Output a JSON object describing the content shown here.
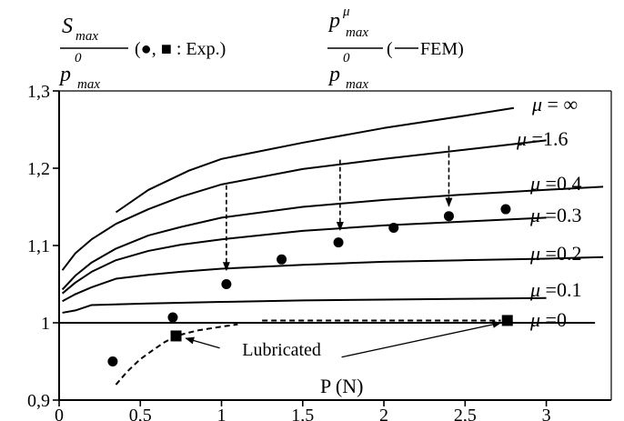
{
  "chart_data": {
    "type": "line",
    "title": "",
    "xlabel": "P (N)",
    "ylabel_left": {
      "numerator": "S",
      "numerator_sub": "max",
      "denominator": "p",
      "denominator_sup": "0",
      "denominator_sub": "max",
      "legend_text": "(●, ■ : Exp.)"
    },
    "ylabel_right": {
      "numerator": "p",
      "numerator_sup": "μ",
      "numerator_sub": "max",
      "denominator": "p",
      "denominator_sup": "0",
      "denominator_sub": "max",
      "legend_text_pre": "(",
      "legend_text_post": "FEM)"
    },
    "xlim": [
      0,
      3.4
    ],
    "ylim": [
      0.9,
      1.3
    ],
    "x_ticks": [
      {
        "value": 0,
        "label": "0"
      },
      {
        "value": 0.5,
        "label": "0,5"
      },
      {
        "value": 1,
        "label": "1"
      },
      {
        "value": 1.5,
        "label": "1,5"
      },
      {
        "value": 2,
        "label": "2"
      },
      {
        "value": 2.5,
        "label": "2,5"
      },
      {
        "value": 3,
        "label": "3"
      }
    ],
    "y_ticks": [
      {
        "value": 0.9,
        "label": "0,9"
      },
      {
        "value": 1.0,
        "label": "1"
      },
      {
        "value": 1.1,
        "label": "1,1"
      },
      {
        "value": 1.2,
        "label": "1,2"
      },
      {
        "value": 1.3,
        "label": "1,3"
      }
    ],
    "series": [
      {
        "name": "μ = ∞",
        "label_mu": "μ",
        "label_value": " = ∞",
        "x": [
          0.35,
          0.55,
          0.8,
          1.0,
          1.5,
          2.0,
          2.5,
          2.8
        ],
        "y": [
          1.143,
          1.172,
          1.197,
          1.212,
          1.233,
          1.252,
          1.268,
          1.278
        ]
      },
      {
        "name": "μ =1.6",
        "label_mu": "μ",
        "label_value": " =1.6",
        "x": [
          0.02,
          0.1,
          0.2,
          0.35,
          0.55,
          0.75,
          1.0,
          1.5,
          2.0,
          2.5,
          3.0
        ],
        "y": [
          1.068,
          1.09,
          1.108,
          1.128,
          1.147,
          1.163,
          1.179,
          1.199,
          1.212,
          1.224,
          1.236
        ]
      },
      {
        "name": "μ =0.4",
        "label_mu": "μ",
        "label_value": " =0.4",
        "x": [
          0.02,
          0.1,
          0.2,
          0.35,
          0.55,
          0.75,
          1.0,
          1.5,
          2.0,
          2.5,
          3.0,
          3.35
        ],
        "y": [
          1.043,
          1.061,
          1.078,
          1.096,
          1.113,
          1.124,
          1.136,
          1.15,
          1.159,
          1.166,
          1.172,
          1.176
        ]
      },
      {
        "name": "μ =0.3",
        "label_mu": "μ",
        "label_value": " =0.3",
        "x": [
          0.02,
          0.1,
          0.2,
          0.35,
          0.55,
          0.75,
          1.0,
          1.5,
          2.0,
          2.5,
          3.0
        ],
        "y": [
          1.038,
          1.052,
          1.066,
          1.081,
          1.093,
          1.101,
          1.108,
          1.119,
          1.126,
          1.131,
          1.136
        ]
      },
      {
        "name": "μ =0.2",
        "label_mu": "μ",
        "label_value": " =0.2",
        "x": [
          0.02,
          0.1,
          0.2,
          0.35,
          0.55,
          0.75,
          1.0,
          1.5,
          2.0,
          2.5,
          3.0,
          3.35
        ],
        "y": [
          1.028,
          1.037,
          1.046,
          1.057,
          1.062,
          1.066,
          1.07,
          1.075,
          1.079,
          1.081,
          1.083,
          1.085
        ]
      },
      {
        "name": "μ =0.1",
        "label_mu": "μ",
        "label_value": " =0.1",
        "x": [
          0.02,
          0.1,
          0.2,
          0.55,
          1.0,
          1.5,
          2.0,
          2.5,
          3.0
        ],
        "y": [
          1.013,
          1.016,
          1.023,
          1.025,
          1.027,
          1.029,
          1.03,
          1.031,
          1.032
        ]
      },
      {
        "name": "μ =0",
        "label_mu": "μ",
        "label_value": " =0",
        "x": [
          0,
          3.3
        ],
        "y": [
          1.0,
          1.0
        ]
      }
    ],
    "experimental_circles": {
      "x": [
        0.33,
        0.7,
        1.03,
        1.37,
        1.72,
        2.06,
        2.4,
        2.75
      ],
      "y": [
        0.95,
        1.007,
        1.05,
        1.082,
        1.104,
        1.123,
        1.138,
        1.147
      ]
    },
    "experimental_squares_lubricated": {
      "x": [
        0.72,
        2.76
      ],
      "y": [
        0.983,
        1.003
      ]
    },
    "lubricated_dashed_curve": {
      "x": [
        0.35,
        0.42,
        0.5,
        0.58,
        0.65,
        0.72,
        0.85,
        1.0,
        1.1
      ],
      "y": [
        0.92,
        0.937,
        0.953,
        0.965,
        0.975,
        0.983,
        0.99,
        0.995,
        0.998
      ]
    },
    "lubricated_dashed_line": {
      "x": [
        1.25,
        2.72
      ],
      "y": [
        1.003,
        1.003
      ]
    },
    "drop_arrows": [
      {
        "x": 1.03,
        "y_from": 1.178,
        "y_to": 1.068
      },
      {
        "x": 1.73,
        "y_from": 1.211,
        "y_to": 1.12
      },
      {
        "x": 2.4,
        "y_from": 1.229,
        "y_to": 1.151
      }
    ],
    "annotations": [
      {
        "text": "Lubricated",
        "x": 1.37,
        "y": 0.965,
        "arrow_targets": [
          {
            "x": 0.78,
            "y": 0.98
          },
          {
            "x": 2.72,
            "y": 1.0
          }
        ]
      }
    ],
    "grid": false,
    "legend": "none",
    "colors": {
      "line": "#000000",
      "background": "#ffffff"
    }
  }
}
